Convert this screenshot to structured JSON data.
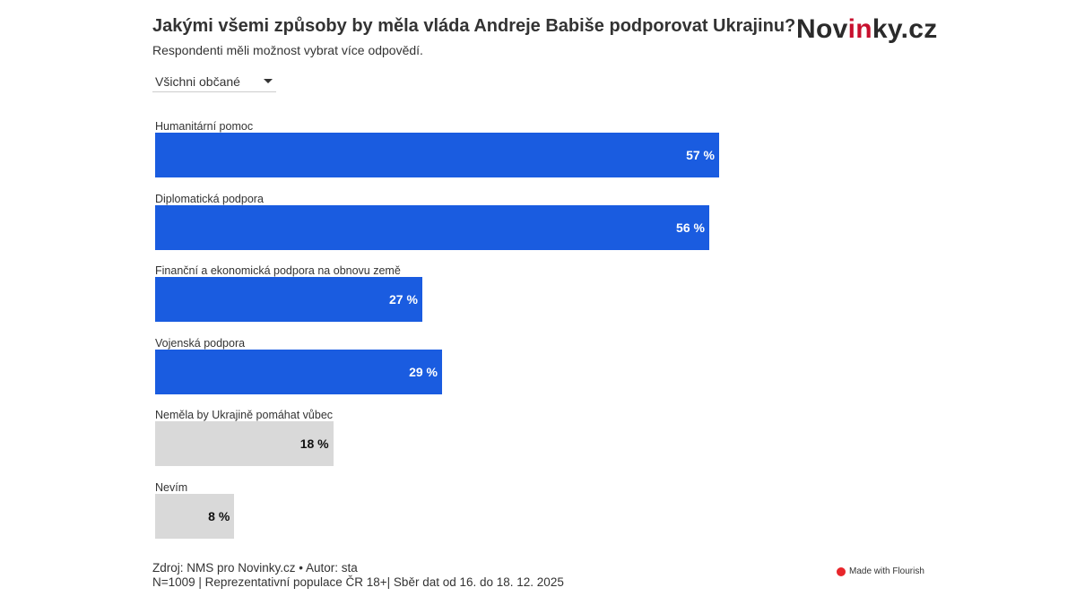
{
  "header": {
    "title": "Jakými všemi způsoby by měla vláda Andreje Babiše podporovat Ukrajinu?",
    "subtitle": "Respondenti měli možnost vybrat více odpovědí.",
    "logo": "Novinky.cz",
    "logo_parts": [
      "Nov",
      "in",
      "ky.cz"
    ]
  },
  "filter": {
    "selected": "Všichni občané"
  },
  "chart_data": {
    "type": "bar",
    "orientation": "horizontal",
    "categories": [
      "Humanitární pomoc",
      "Diplomatická podpora",
      "Finanční a ekonomická podpora na obnovu země",
      "Vojenská podpora",
      "Neměla by Ukrajině pomáhat vůbec",
      "Nevím"
    ],
    "values": [
      57,
      56,
      27,
      29,
      18,
      8
    ],
    "value_labels": [
      "57 %",
      "56 %",
      "27 %",
      "29 %",
      "18 %",
      "8 %"
    ],
    "unit": "%",
    "xlim": [
      0,
      100
    ],
    "colors": [
      "#1a5ce0",
      "#1a5ce0",
      "#1a5ce0",
      "#1a5ce0",
      "#d9d9d9",
      "#d9d9d9"
    ],
    "label_colors": [
      "#ffffff",
      "#ffffff",
      "#ffffff",
      "#ffffff",
      "#111111",
      "#111111"
    ],
    "grid": false
  },
  "footer": {
    "line1": "Zdroj: NMS pro Novinky.cz • Autor: sta",
    "line2": "N=1009 | Reprezentativní populace ČR 18+| Sběr dat od 16. do 18. 12. 2025",
    "credit": "Made with Flourish"
  }
}
